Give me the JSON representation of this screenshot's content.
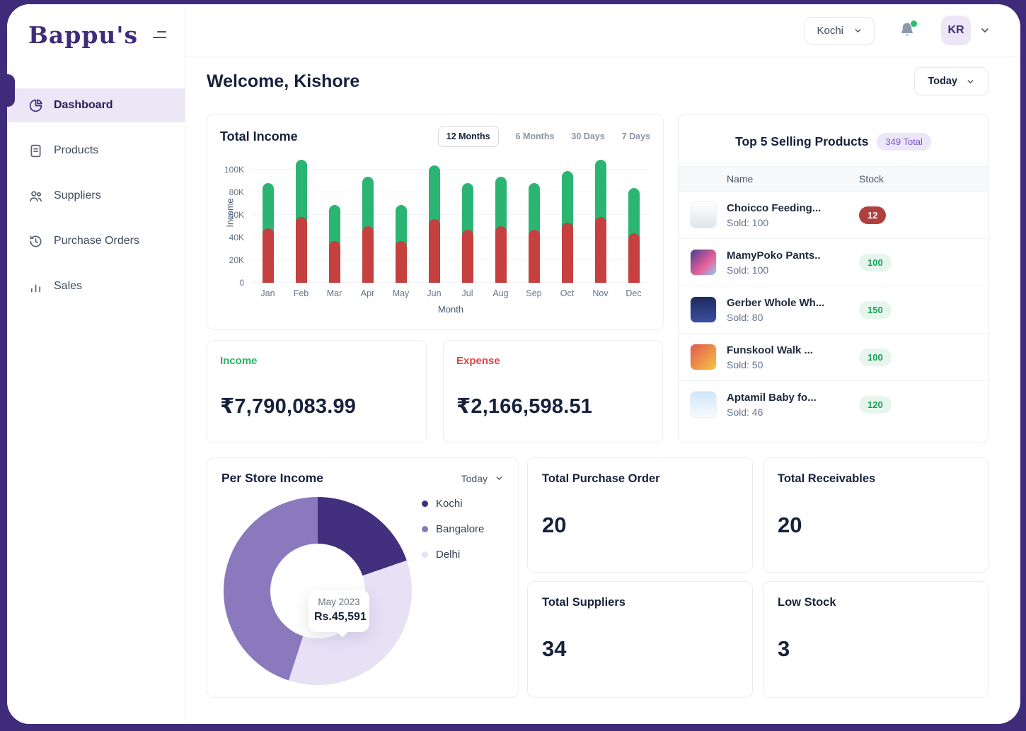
{
  "frame_color": "#3e2c7a",
  "sidebar": {
    "logo": "Bappu's",
    "items": [
      {
        "label": "Dashboard",
        "icon": "pie-chart-icon",
        "active": true
      },
      {
        "label": "Products",
        "icon": "document-icon",
        "active": false
      },
      {
        "label": "Suppliers",
        "icon": "users-icon",
        "active": false
      },
      {
        "label": "Purchase Orders",
        "icon": "history-icon",
        "active": false
      },
      {
        "label": "Sales",
        "icon": "bar-chart-icon",
        "active": false
      }
    ]
  },
  "topbar": {
    "location": "Kochi",
    "notification_dot": true,
    "avatar_initials": "KR"
  },
  "main": {
    "welcome": "Welcome, Kishore",
    "range_button": "Today",
    "total_income": {
      "title": "Total Income",
      "tabs": [
        "12 Months",
        "6 Months",
        "30 Days",
        "7 Days"
      ],
      "active_tab": "12 Months"
    },
    "income_card": {
      "label": "Income",
      "value": "₹7,790,083.99",
      "color": "#27b56a"
    },
    "expense_card": {
      "label": "Expense",
      "value": "₹2,166,598.51",
      "color": "#e04545"
    },
    "top_products": {
      "title": "Top 5 Selling Products",
      "badge": "349 Total",
      "columns": [
        "Name",
        "Stock"
      ],
      "rows": [
        {
          "name": "Choicco Feeding...",
          "sold": "Sold: 100",
          "stock": "12",
          "stock_level": "low"
        },
        {
          "name": "MamyPoko Pants..",
          "sold": "Sold: 100",
          "stock": "100",
          "stock_level": "ok"
        },
        {
          "name": "Gerber Whole Wh...",
          "sold": "Sold: 80",
          "stock": "150",
          "stock_level": "ok"
        },
        {
          "name": "Funskool Walk ...",
          "sold": "Sold: 50",
          "stock": "100",
          "stock_level": "ok"
        },
        {
          "name": "Aptamil Baby fo...",
          "sold": "Sold: 46",
          "stock": "120",
          "stock_level": "ok"
        }
      ]
    },
    "per_store": {
      "title": "Per Store Income",
      "range": "Today",
      "tooltip": {
        "label": "May 2023",
        "value": "Rs.45,591"
      }
    },
    "stats": [
      {
        "label": "Total Purchase Order",
        "value": "20"
      },
      {
        "label": "Total Receivables",
        "value": "20"
      },
      {
        "label": "Total Suppliers",
        "value": "34"
      },
      {
        "label": "Low Stock",
        "value": "3"
      }
    ]
  },
  "chart_data": [
    {
      "type": "bar",
      "stacked": true,
      "title": "Total Income",
      "xlabel": "Month",
      "ylabel": "Income",
      "categories": [
        "Jan",
        "Feb",
        "Mar",
        "Apr",
        "May",
        "Jun",
        "Jul",
        "Aug",
        "Sep",
        "Oct",
        "Nov",
        "Dec"
      ],
      "series": [
        {
          "name": "Expense",
          "color": "#c5403f",
          "values": [
            48,
            58,
            37,
            50,
            37,
            56,
            47,
            50,
            47,
            53,
            58,
            44
          ]
        },
        {
          "name": "Income",
          "color": "#2bb573",
          "values": [
            40,
            51,
            32,
            44,
            32,
            48,
            41,
            44,
            41,
            46,
            51,
            40
          ]
        }
      ],
      "unit": "K",
      "ylim": [
        0,
        110
      ],
      "yticks": [
        "0",
        "20K",
        "40K",
        "60K",
        "80K",
        "100K"
      ],
      "grid": true,
      "legend_position": "none"
    },
    {
      "type": "pie",
      "title": "Per Store Income",
      "labels": [
        "Kochi",
        "Bangalore",
        "Delhi"
      ],
      "values_percent": [
        20,
        45,
        35
      ],
      "colors": [
        "#42307e",
        "#8a79bd",
        "#e7e1f6"
      ],
      "segments_deg": [
        {
          "name": "Kochi",
          "color": "#42307e",
          "start": 0,
          "end": 71
        },
        {
          "name": "Delhi",
          "color": "#e7e1f6",
          "start": 71,
          "end": 198
        },
        {
          "name": "Bangalore",
          "color": "#8a79bd",
          "start": 198,
          "end": 360
        }
      ],
      "legend_position": "right",
      "tooltip": {
        "label": "May 2023",
        "value": "Rs.45,591"
      }
    }
  ]
}
